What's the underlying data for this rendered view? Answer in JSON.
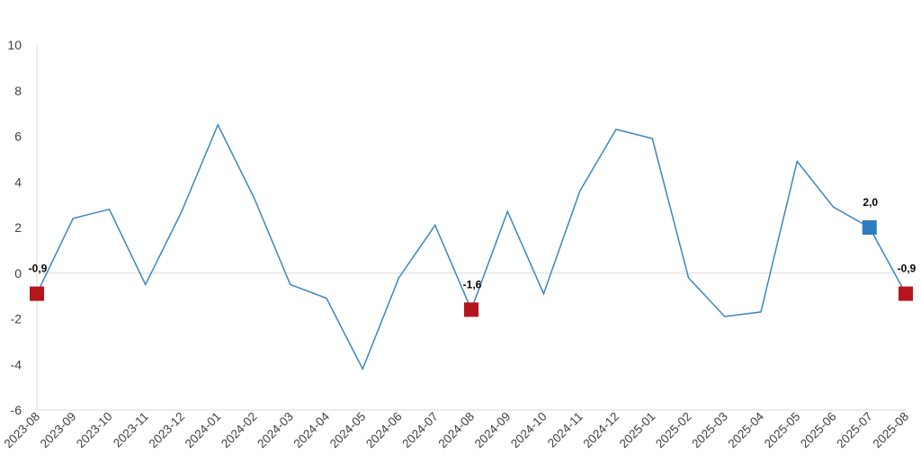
{
  "chart_data": {
    "type": "line",
    "title": "",
    "xlabel": "",
    "ylabel": "",
    "ylim": [
      -6,
      10
    ],
    "yticks": [
      -6,
      -4,
      -2,
      0,
      2,
      4,
      6,
      8,
      10
    ],
    "grid": false,
    "legend": "none",
    "categories": [
      "2023-08",
      "2023-09",
      "2023-10",
      "2023-11",
      "2023-12",
      "2024-01",
      "2024-02",
      "2024-03",
      "2024-04",
      "2024-05",
      "2024-06",
      "2024-07",
      "2024-08",
      "2024-09",
      "2024-10",
      "2024-11",
      "2024-12",
      "2025-01",
      "2025-02",
      "2025-03",
      "2025-04",
      "2025-05",
      "2025-06",
      "2025-07",
      "2025-08"
    ],
    "series": [
      {
        "values": [
          -0.9,
          2.4,
          2.8,
          -0.5,
          2.7,
          6.5,
          3.3,
          -0.5,
          -1.1,
          -4.2,
          -0.2,
          2.1,
          -1.6,
          2.7,
          -0.9,
          3.6,
          6.3,
          5.9,
          -0.2,
          -1.9,
          -1.7,
          4.9,
          2.9,
          2.0,
          -0.9
        ],
        "color": "#3a86c1"
      }
    ],
    "highlights": [
      {
        "category": "2023-08",
        "value": -0.9,
        "label": "-0,9",
        "color": "#b5161e"
      },
      {
        "category": "2024-08",
        "value": -1.6,
        "label": "-1,6",
        "color": "#b5161e"
      },
      {
        "category": "2025-07",
        "value": 2.0,
        "label": "2,0",
        "color": "#2e7dbe"
      },
      {
        "category": "2025-08",
        "value": -0.9,
        "label": "-0,9",
        "color": "#b5161e"
      }
    ],
    "colors": {
      "line": "#3a86c1",
      "axis": "#d9d9d9",
      "text": "#404040"
    }
  }
}
